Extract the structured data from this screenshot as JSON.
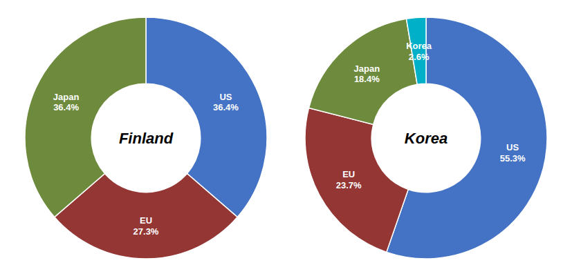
{
  "chart_data": [
    {
      "type": "pie",
      "title": "Finland",
      "categories": [
        "US",
        "EU",
        "Japan"
      ],
      "values": [
        36.4,
        27.3,
        36.4
      ],
      "value_labels": [
        "36.4%",
        "27.3%",
        "36.4%"
      ],
      "colors": [
        "#4472C4",
        "#943634",
        "#6E8B3D"
      ],
      "data_labels": true
    },
    {
      "type": "pie",
      "title": "Korea",
      "categories": [
        "US",
        "EU",
        "Japan",
        "Korea"
      ],
      "values": [
        55.3,
        23.7,
        18.4,
        2.6
      ],
      "value_labels": [
        "55.3%",
        "23.7%",
        "18.4%",
        "2.6%"
      ],
      "colors": [
        "#4472C4",
        "#943634",
        "#6E8B3D",
        "#00B0C8"
      ],
      "data_labels": true
    }
  ]
}
